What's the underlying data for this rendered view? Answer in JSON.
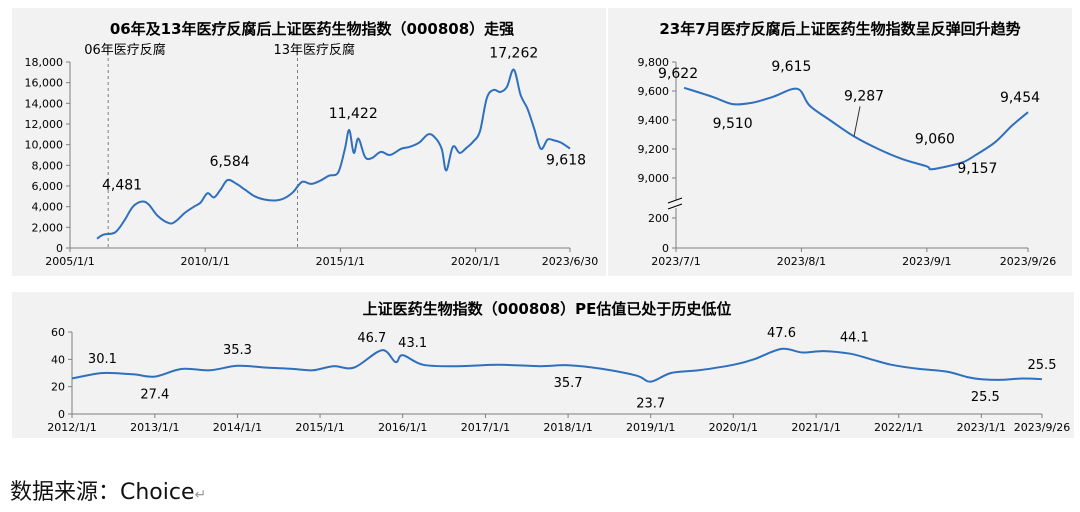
{
  "source": {
    "text": "数据来源：Choice",
    "mark": "↵"
  },
  "chart_data": [
    {
      "type": "line",
      "title": "06年及13年医疗反腐后上证医药生物指数（000808）走强",
      "x_ticks": [
        "2005/1/1",
        "2010/1/1",
        "2015/1/1",
        "2020/1/1",
        "2023/6/30"
      ],
      "ylim": [
        0,
        18000
      ],
      "y_ticks": [
        "0",
        "2,000",
        "4,000",
        "6,000",
        "8,000",
        "10,000",
        "12,000",
        "14,000",
        "16,000",
        "18,000"
      ],
      "events": [
        {
          "date": "2006/6/1",
          "label": "06年医疗反腐"
        },
        {
          "date": "2013/6/1",
          "label": "13年医疗反腐"
        }
      ],
      "series": [
        {
          "color": "#2e6fbe",
          "points": [
            [
              "2006/1/1",
              900
            ],
            [
              "2006/4/1",
              1300
            ],
            [
              "2006/9/1",
              1500
            ],
            [
              "2007/1/1",
              2600
            ],
            [
              "2007/5/1",
              4000
            ],
            [
              "2007/9/1",
              4500
            ],
            [
              "2007/12/1",
              4200
            ],
            [
              "2008/4/1",
              3100
            ],
            [
              "2008/9/1",
              2400
            ],
            [
              "2008/12/1",
              2600
            ],
            [
              "2009/4/1",
              3400
            ],
            [
              "2009/8/1",
              4000
            ],
            [
              "2009/11/1",
              4400
            ],
            [
              "2010/2/1",
              5300
            ],
            [
              "2010/5/1",
              4900
            ],
            [
              "2010/8/1",
              5700
            ],
            [
              "2010/11/1",
              6584
            ],
            [
              "2011/3/1",
              6200
            ],
            [
              "2011/7/1",
              5600
            ],
            [
              "2011/11/1",
              5000
            ],
            [
              "2012/3/1",
              4700
            ],
            [
              "2012/8/1",
              4600
            ],
            [
              "2012/12/1",
              4800
            ],
            [
              "2013/4/1",
              5400
            ],
            [
              "2013/8/1",
              6400
            ],
            [
              "2013/12/1",
              6200
            ],
            [
              "2014/4/1",
              6500
            ],
            [
              "2014/8/1",
              7000
            ],
            [
              "2014/12/1",
              7300
            ],
            [
              "2015/3/1",
              9500
            ],
            [
              "2015/5/1",
              11422
            ],
            [
              "2015/7/1",
              9200
            ],
            [
              "2015/9/1",
              10600
            ],
            [
              "2015/12/1",
              8800
            ],
            [
              "2016/3/1",
              8700
            ],
            [
              "2016/7/1",
              9300
            ],
            [
              "2016/11/1",
              9000
            ],
            [
              "2017/4/1",
              9600
            ],
            [
              "2017/8/1",
              9800
            ],
            [
              "2017/12/1",
              10200
            ],
            [
              "2018/4/1",
              11000
            ],
            [
              "2018/7/1",
              10700
            ],
            [
              "2018/10/1",
              9600
            ],
            [
              "2018/12/1",
              7500
            ],
            [
              "2019/3/1",
              9800
            ],
            [
              "2019/6/1",
              9200
            ],
            [
              "2019/9/1",
              9700
            ],
            [
              "2019/12/1",
              10300
            ],
            [
              "2020/3/1",
              11300
            ],
            [
              "2020/6/1",
              14500
            ],
            [
              "2020/9/1",
              15300
            ],
            [
              "2020/12/1",
              15100
            ],
            [
              "2021/3/1",
              15600
            ],
            [
              "2021/6/1",
              17262
            ],
            [
              "2021/9/1",
              14800
            ],
            [
              "2021/12/1",
              13500
            ],
            [
              "2022/3/1",
              11600
            ],
            [
              "2022/6/1",
              9600
            ],
            [
              "2022/9/1",
              10500
            ],
            [
              "2022/12/1",
              10400
            ],
            [
              "2023/3/1",
              10200
            ],
            [
              "2023/6/30",
              9618
            ]
          ]
        }
      ],
      "annotations": [
        {
          "date": "2007/9/1",
          "value": 4481,
          "text": "4,481",
          "dx": -20,
          "dy": -12
        },
        {
          "date": "2010/11/1",
          "value": 6584,
          "text": "6,584",
          "dx": 2,
          "dy": -14
        },
        {
          "date": "2015/5/1",
          "value": 11422,
          "text": "11,422",
          "dx": 4,
          "dy": -12
        },
        {
          "date": "2021/6/1",
          "value": 17262,
          "text": "17,262",
          "dx": 0,
          "dy": -12
        },
        {
          "date": "2023/6/30",
          "value": 9618,
          "text": "9,618",
          "dx": -4,
          "dy": 16
        }
      ]
    },
    {
      "type": "line",
      "title": "23年7月医疗反腐后上证医药生物指数呈反弹回升趋势",
      "x_ticks": [
        "2023/7/1",
        "2023/8/1",
        "2023/9/1",
        "2023/9/26"
      ],
      "ylim": [
        9000,
        9800
      ],
      "y_ticks": [
        "9,000",
        "9,200",
        "9,400",
        "9,600",
        "9,800"
      ],
      "lower_ticks": [
        "0",
        "200"
      ],
      "axis_break": true,
      "series": [
        {
          "color": "#2e6fbe",
          "points": [
            [
              "2023/7/3",
              9622
            ],
            [
              "2023/7/10",
              9560
            ],
            [
              "2023/7/15",
              9510
            ],
            [
              "2023/7/20",
              9520
            ],
            [
              "2023/7/25",
              9560
            ],
            [
              "2023/7/31",
              9615
            ],
            [
              "2023/8/3",
              9500
            ],
            [
              "2023/8/8",
              9400
            ],
            [
              "2023/8/14",
              9287
            ],
            [
              "2023/8/20",
              9200
            ],
            [
              "2023/8/26",
              9130
            ],
            [
              "2023/9/1",
              9080
            ],
            [
              "2023/9/2",
              9060
            ],
            [
              "2023/9/6",
              9080
            ],
            [
              "2023/9/10",
              9110
            ],
            [
              "2023/9/13",
              9157
            ],
            [
              "2023/9/18",
              9250
            ],
            [
              "2023/9/22",
              9360
            ],
            [
              "2023/9/26",
              9454
            ]
          ]
        }
      ],
      "annotations": [
        {
          "date": "2023/7/3",
          "value": 9622,
          "text": "9,622",
          "dx": -6,
          "dy": -10
        },
        {
          "date": "2023/7/15",
          "value": 9510,
          "text": "9,510",
          "dx": 0,
          "dy": 24
        },
        {
          "date": "2023/7/31",
          "value": 9615,
          "text": "9,615",
          "dx": -6,
          "dy": -18
        },
        {
          "date": "2023/8/14",
          "value": 9287,
          "text": "9,287",
          "dx": 10,
          "dy": -36
        },
        {
          "date": "2023/9/2",
          "value": 9060,
          "text": "9,060",
          "dx": 4,
          "dy": -26
        },
        {
          "date": "2023/9/13",
          "value": 9157,
          "text": "9,157",
          "dx": 2,
          "dy": 18
        },
        {
          "date": "2023/9/26",
          "value": 9454,
          "text": "9,454",
          "dx": -8,
          "dy": -10
        }
      ]
    },
    {
      "type": "line",
      "title": "上证医药生物指数（000808）PE估值已处于历史低位",
      "x_ticks": [
        "2012/1/1",
        "2013/1/1",
        "2014/1/1",
        "2015/1/1",
        "2016/1/1",
        "2017/1/1",
        "2018/1/1",
        "2019/1/1",
        "2020/1/1",
        "2021/1/1",
        "2022/1/1",
        "2023/1/1",
        "2023/9/26"
      ],
      "ylim": [
        0,
        60
      ],
      "y_ticks": [
        "0",
        "20",
        "40",
        "60"
      ],
      "series": [
        {
          "color": "#2e6fbe",
          "points": [
            [
              "2012/1/1",
              26
            ],
            [
              "2012/4/1",
              29
            ],
            [
              "2012/6/1",
              30.1
            ],
            [
              "2012/10/1",
              29
            ],
            [
              "2013/1/1",
              27.4
            ],
            [
              "2013/5/1",
              33
            ],
            [
              "2013/9/1",
              32
            ],
            [
              "2014/1/1",
              35.3
            ],
            [
              "2014/5/1",
              34
            ],
            [
              "2014/9/1",
              33
            ],
            [
              "2014/12/1",
              32
            ],
            [
              "2015/3/1",
              35
            ],
            [
              "2015/6/1",
              34
            ],
            [
              "2015/10/1",
              46.7
            ],
            [
              "2015/12/1",
              38
            ],
            [
              "2016/1/1",
              43.1
            ],
            [
              "2016/4/1",
              36
            ],
            [
              "2016/9/1",
              35
            ],
            [
              "2017/3/1",
              36
            ],
            [
              "2017/9/1",
              35
            ],
            [
              "2018/1/1",
              35.7
            ],
            [
              "2018/6/1",
              33
            ],
            [
              "2018/11/1",
              28
            ],
            [
              "2019/1/1",
              23.7
            ],
            [
              "2019/4/1",
              30
            ],
            [
              "2019/8/1",
              32
            ],
            [
              "2020/1/1",
              36
            ],
            [
              "2020/4/1",
              40
            ],
            [
              "2020/8/1",
              47.6
            ],
            [
              "2020/11/1",
              45
            ],
            [
              "2021/2/1",
              46
            ],
            [
              "2021/6/1",
              44.1
            ],
            [
              "2021/9/1",
              40
            ],
            [
              "2021/12/1",
              36
            ],
            [
              "2022/4/1",
              33
            ],
            [
              "2022/8/1",
              31
            ],
            [
              "2022/11/1",
              27
            ],
            [
              "2023/1/1",
              25.5
            ],
            [
              "2023/4/1",
              25
            ],
            [
              "2023/7/1",
              26
            ],
            [
              "2023/9/26",
              25.5
            ]
          ]
        }
      ],
      "annotations": [
        {
          "date": "2012/6/1",
          "value": 30.1,
          "text": "30.1",
          "dx": -4,
          "dy": -10
        },
        {
          "date": "2013/1/1",
          "value": 27.4,
          "text": "27.4",
          "dx": 0,
          "dy": 22
        },
        {
          "date": "2014/1/1",
          "value": 35.3,
          "text": "35.3",
          "dx": 0,
          "dy": -12
        },
        {
          "date": "2015/10/1",
          "value": 46.7,
          "text": "46.7",
          "dx": -10,
          "dy": -8
        },
        {
          "date": "2016/1/1",
          "value": 43.1,
          "text": "43.1",
          "dx": 10,
          "dy": -8
        },
        {
          "date": "2018/1/1",
          "value": 35.7,
          "text": "35.7",
          "dx": 0,
          "dy": 22
        },
        {
          "date": "2019/1/1",
          "value": 23.7,
          "text": "23.7",
          "dx": 0,
          "dy": 26
        },
        {
          "date": "2020/8/1",
          "value": 47.6,
          "text": "47.6",
          "dx": 0,
          "dy": -12
        },
        {
          "date": "2021/6/1",
          "value": 44.1,
          "text": "44.1",
          "dx": 4,
          "dy": -12
        },
        {
          "date": "2023/1/1",
          "value": 25.5,
          "text": "25.5",
          "dx": 4,
          "dy": 22
        },
        {
          "date": "2023/9/26",
          "value": 25.5,
          "text": "25.5",
          "dx": 0,
          "dy": -10
        }
      ]
    }
  ]
}
